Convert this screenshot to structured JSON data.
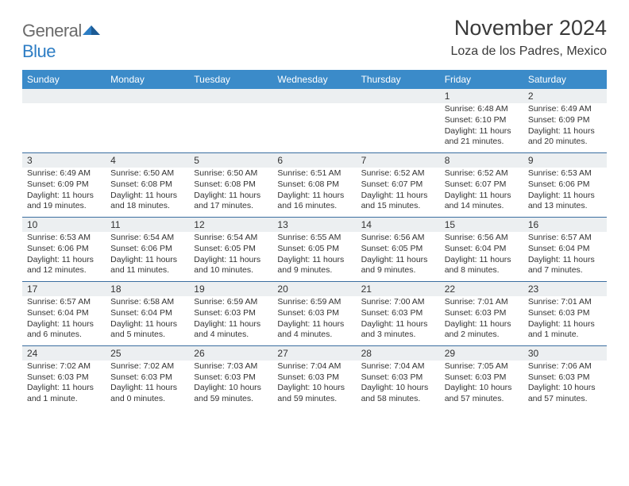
{
  "logo": {
    "text1": "General",
    "text2": "Blue"
  },
  "title": "November 2024",
  "location": "Loza de los Padres, Mexico",
  "header_bg": "#3b8bc9",
  "header_fg": "#ffffff",
  "daynum_bg": "#eceff1",
  "border_color": "#3b6fa0",
  "day_names": [
    "Sunday",
    "Monday",
    "Tuesday",
    "Wednesday",
    "Thursday",
    "Friday",
    "Saturday"
  ],
  "weeks": [
    [
      null,
      null,
      null,
      null,
      null,
      {
        "n": "1",
        "sr": "6:48 AM",
        "ss": "6:10 PM",
        "dl": "11 hours and 21 minutes."
      },
      {
        "n": "2",
        "sr": "6:49 AM",
        "ss": "6:09 PM",
        "dl": "11 hours and 20 minutes."
      }
    ],
    [
      {
        "n": "3",
        "sr": "6:49 AM",
        "ss": "6:09 PM",
        "dl": "11 hours and 19 minutes."
      },
      {
        "n": "4",
        "sr": "6:50 AM",
        "ss": "6:08 PM",
        "dl": "11 hours and 18 minutes."
      },
      {
        "n": "5",
        "sr": "6:50 AM",
        "ss": "6:08 PM",
        "dl": "11 hours and 17 minutes."
      },
      {
        "n": "6",
        "sr": "6:51 AM",
        "ss": "6:08 PM",
        "dl": "11 hours and 16 minutes."
      },
      {
        "n": "7",
        "sr": "6:52 AM",
        "ss": "6:07 PM",
        "dl": "11 hours and 15 minutes."
      },
      {
        "n": "8",
        "sr": "6:52 AM",
        "ss": "6:07 PM",
        "dl": "11 hours and 14 minutes."
      },
      {
        "n": "9",
        "sr": "6:53 AM",
        "ss": "6:06 PM",
        "dl": "11 hours and 13 minutes."
      }
    ],
    [
      {
        "n": "10",
        "sr": "6:53 AM",
        "ss": "6:06 PM",
        "dl": "11 hours and 12 minutes."
      },
      {
        "n": "11",
        "sr": "6:54 AM",
        "ss": "6:06 PM",
        "dl": "11 hours and 11 minutes."
      },
      {
        "n": "12",
        "sr": "6:54 AM",
        "ss": "6:05 PM",
        "dl": "11 hours and 10 minutes."
      },
      {
        "n": "13",
        "sr": "6:55 AM",
        "ss": "6:05 PM",
        "dl": "11 hours and 9 minutes."
      },
      {
        "n": "14",
        "sr": "6:56 AM",
        "ss": "6:05 PM",
        "dl": "11 hours and 9 minutes."
      },
      {
        "n": "15",
        "sr": "6:56 AM",
        "ss": "6:04 PM",
        "dl": "11 hours and 8 minutes."
      },
      {
        "n": "16",
        "sr": "6:57 AM",
        "ss": "6:04 PM",
        "dl": "11 hours and 7 minutes."
      }
    ],
    [
      {
        "n": "17",
        "sr": "6:57 AM",
        "ss": "6:04 PM",
        "dl": "11 hours and 6 minutes."
      },
      {
        "n": "18",
        "sr": "6:58 AM",
        "ss": "6:04 PM",
        "dl": "11 hours and 5 minutes."
      },
      {
        "n": "19",
        "sr": "6:59 AM",
        "ss": "6:03 PM",
        "dl": "11 hours and 4 minutes."
      },
      {
        "n": "20",
        "sr": "6:59 AM",
        "ss": "6:03 PM",
        "dl": "11 hours and 4 minutes."
      },
      {
        "n": "21",
        "sr": "7:00 AM",
        "ss": "6:03 PM",
        "dl": "11 hours and 3 minutes."
      },
      {
        "n": "22",
        "sr": "7:01 AM",
        "ss": "6:03 PM",
        "dl": "11 hours and 2 minutes."
      },
      {
        "n": "23",
        "sr": "7:01 AM",
        "ss": "6:03 PM",
        "dl": "11 hours and 1 minute."
      }
    ],
    [
      {
        "n": "24",
        "sr": "7:02 AM",
        "ss": "6:03 PM",
        "dl": "11 hours and 1 minute."
      },
      {
        "n": "25",
        "sr": "7:02 AM",
        "ss": "6:03 PM",
        "dl": "11 hours and 0 minutes."
      },
      {
        "n": "26",
        "sr": "7:03 AM",
        "ss": "6:03 PM",
        "dl": "10 hours and 59 minutes."
      },
      {
        "n": "27",
        "sr": "7:04 AM",
        "ss": "6:03 PM",
        "dl": "10 hours and 59 minutes."
      },
      {
        "n": "28",
        "sr": "7:04 AM",
        "ss": "6:03 PM",
        "dl": "10 hours and 58 minutes."
      },
      {
        "n": "29",
        "sr": "7:05 AM",
        "ss": "6:03 PM",
        "dl": "10 hours and 57 minutes."
      },
      {
        "n": "30",
        "sr": "7:06 AM",
        "ss": "6:03 PM",
        "dl": "10 hours and 57 minutes."
      }
    ]
  ],
  "labels": {
    "sunrise": "Sunrise: ",
    "sunset": "Sunset: ",
    "daylight": "Daylight: "
  }
}
